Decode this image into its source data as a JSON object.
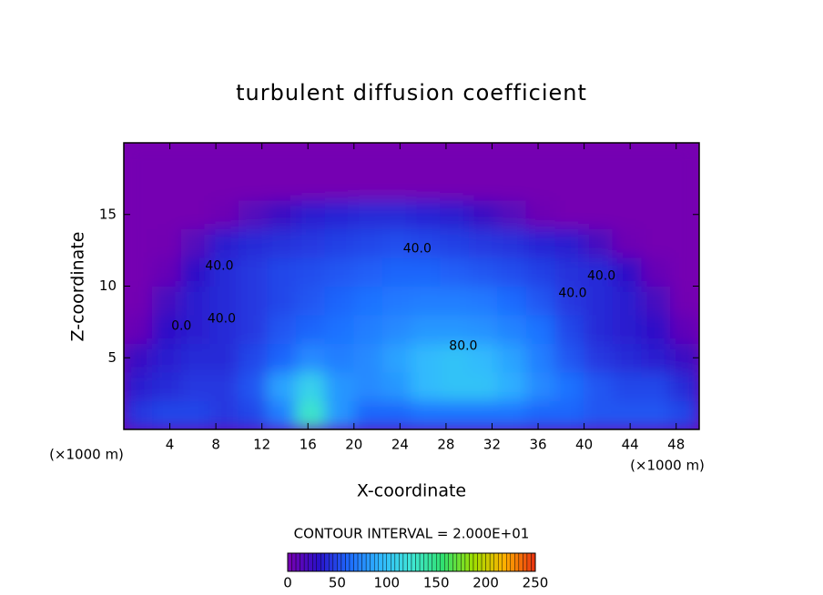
{
  "chart_data": {
    "type": "heatmap",
    "title": "turbulent diffusion coefficient",
    "xlabel": "X-coordinate",
    "ylabel": "Z-coordinate",
    "x_unit": "(×1000 m)",
    "y_unit": "(×1000 m)",
    "xlim": [
      0,
      50
    ],
    "ylim": [
      0,
      20
    ],
    "xticks": [
      4,
      8,
      12,
      16,
      20,
      24,
      28,
      32,
      36,
      40,
      44,
      48
    ],
    "yticks": [
      5,
      10,
      15
    ],
    "x": [
      1.25,
      3.75,
      6.25,
      8.75,
      11.25,
      13.75,
      16.25,
      18.75,
      21.25,
      23.75,
      26.25,
      28.75,
      31.25,
      33.75,
      36.25,
      38.75,
      41.25,
      43.75,
      46.25,
      48.75
    ],
    "z": [
      1,
      3,
      5,
      7,
      9,
      11,
      13,
      15,
      17,
      19
    ],
    "values": [
      [
        45,
        50,
        50,
        45,
        50,
        70,
        130,
        80,
        60,
        60,
        65,
        65,
        65,
        65,
        60,
        60,
        55,
        55,
        55,
        50
      ],
      [
        35,
        40,
        45,
        45,
        55,
        85,
        110,
        80,
        75,
        80,
        95,
        100,
        100,
        90,
        75,
        65,
        55,
        50,
        50,
        40
      ],
      [
        25,
        35,
        40,
        40,
        50,
        60,
        75,
        70,
        75,
        85,
        95,
        100,
        95,
        85,
        70,
        55,
        45,
        40,
        35,
        25
      ],
      [
        8,
        30,
        35,
        40,
        45,
        55,
        60,
        65,
        70,
        75,
        80,
        80,
        78,
        72,
        65,
        50,
        40,
        35,
        30,
        10
      ],
      [
        3,
        20,
        35,
        40,
        45,
        50,
        55,
        60,
        65,
        68,
        70,
        70,
        68,
        62,
        55,
        45,
        40,
        35,
        20,
        3
      ],
      [
        2,
        8,
        30,
        40,
        45,
        50,
        52,
        55,
        58,
        60,
        60,
        58,
        55,
        52,
        48,
        42,
        40,
        30,
        8,
        2
      ],
      [
        2,
        3,
        15,
        35,
        40,
        42,
        45,
        48,
        50,
        52,
        50,
        48,
        45,
        42,
        38,
        35,
        20,
        5,
        2,
        2
      ],
      [
        2,
        2,
        2,
        5,
        15,
        25,
        35,
        38,
        40,
        40,
        38,
        35,
        25,
        15,
        5,
        2,
        2,
        2,
        2,
        2
      ],
      [
        2,
        2,
        2,
        2,
        2,
        2,
        2,
        2,
        2,
        2,
        2,
        2,
        2,
        2,
        2,
        2,
        2,
        2,
        2,
        2
      ],
      [
        2,
        2,
        2,
        2,
        2,
        2,
        2,
        2,
        2,
        2,
        2,
        2,
        2,
        2,
        2,
        2,
        2,
        2,
        2,
        2
      ]
    ],
    "contour_labels": [
      {
        "x": 25.5,
        "z": 12.6,
        "label": "40.0"
      },
      {
        "x": 8.3,
        "z": 11.4,
        "label": "40.0"
      },
      {
        "x": 8.5,
        "z": 7.7,
        "label": "40.0"
      },
      {
        "x": 5.0,
        "z": 7.2,
        "label": "0.0"
      },
      {
        "x": 39.0,
        "z": 9.5,
        "label": "40.0"
      },
      {
        "x": 41.5,
        "z": 10.7,
        "label": "40.0"
      },
      {
        "x": 29.5,
        "z": 5.8,
        "label": "80.0"
      }
    ],
    "contour_interval": "CONTOUR INTERVAL = 2.000E+01",
    "clim": [
      0,
      250
    ],
    "cticks": [
      0,
      50,
      100,
      150,
      200,
      250
    ],
    "colormap": [
      "#7a00b0",
      "#2a10c8",
      "#1e6cff",
      "#30b8ff",
      "#40e8d8",
      "#30e070",
      "#a0e000",
      "#ffb000",
      "#e83010"
    ]
  }
}
